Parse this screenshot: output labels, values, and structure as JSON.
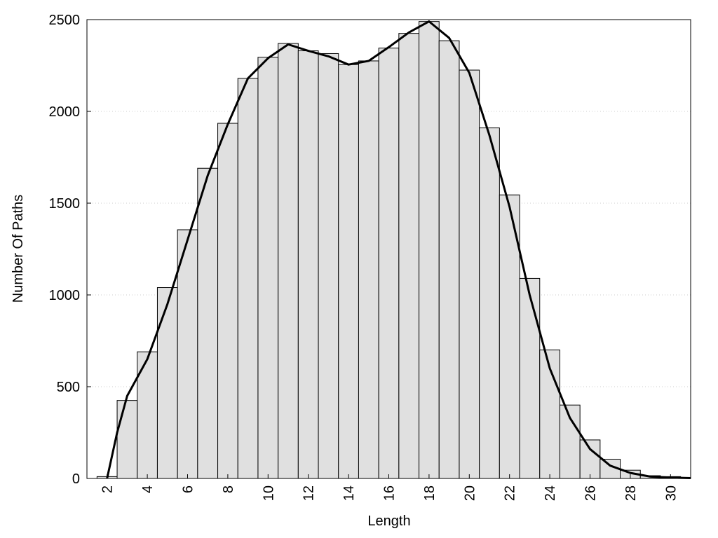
{
  "chart_data": {
    "type": "histogram",
    "x_label": "Length",
    "y_label": "Number Of Paths",
    "bins": [
      1.5,
      2.5,
      3.5,
      4.5,
      5.5,
      6.5,
      7.5,
      8.5,
      9.5,
      10.5,
      11.5,
      12.5,
      13.5,
      14.5,
      15.5,
      16.5,
      17.5,
      18.5,
      19.5,
      20.5,
      21.5,
      22.5,
      23.5,
      24.5,
      25.5,
      26.5,
      27.5,
      28.5,
      29.5,
      30.5
    ],
    "values": [
      10,
      425,
      690,
      1040,
      1355,
      1690,
      1935,
      2180,
      2295,
      2370,
      2330,
      2315,
      2255,
      2275,
      2345,
      2425,
      2490,
      2385,
      2225,
      1910,
      1545,
      1090,
      700,
      400,
      210,
      105,
      45,
      15,
      10
    ],
    "color": "#e0e0e0",
    "curve": {
      "x": [
        2,
        2.5,
        3,
        4,
        5,
        6,
        7,
        8,
        9,
        10,
        11,
        12,
        13,
        14,
        15,
        16,
        17,
        18,
        19,
        20,
        21,
        22,
        23,
        24,
        25,
        26,
        27,
        28,
        29,
        30,
        31
      ],
      "values": [
        0,
        250,
        450,
        650,
        950,
        1300,
        1650,
        1930,
        2180,
        2290,
        2365,
        2330,
        2300,
        2255,
        2275,
        2350,
        2430,
        2490,
        2400,
        2210,
        1870,
        1480,
        1000,
        600,
        330,
        160,
        70,
        30,
        10,
        5,
        2
      ],
      "color": "#000000"
    },
    "xlim": [
      1,
      31
    ],
    "ylim": [
      0,
      2500
    ],
    "xticks": [
      2,
      4,
      6,
      8,
      10,
      12,
      14,
      16,
      18,
      20,
      22,
      24,
      26,
      28,
      30
    ],
    "yticks": [
      0,
      500,
      1000,
      1500,
      2000,
      2500
    ],
    "grid": true
  }
}
